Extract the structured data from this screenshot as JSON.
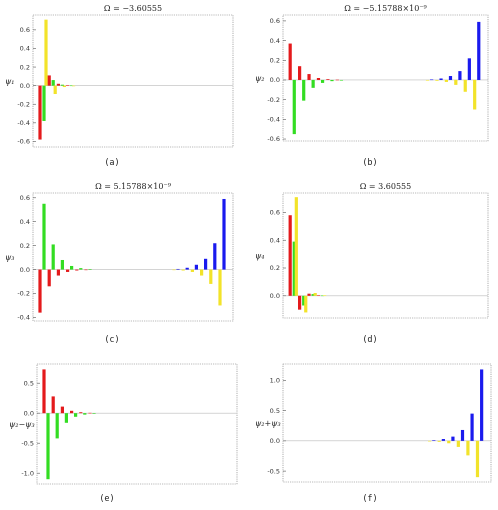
{
  "colors": {
    "red": "#e41a1c",
    "green": "#33dd22",
    "yellow": "#f2e32a",
    "blue": "#1a1aee",
    "frame": "#777777",
    "axis": "#bbbbbb"
  },
  "chart_data": [
    {
      "type": "bar",
      "title": "Ω = −3.60555",
      "ylabel": "ψ₁",
      "caption": "(a)",
      "ylim": [
        -0.66,
        0.76
      ],
      "yticks": [
        -0.6,
        -0.4,
        -0.2,
        0.0,
        0.2,
        0.4,
        0.6
      ],
      "tick_labels": [
        "-0.6",
        "-0.4",
        "-0.2",
        "0.0",
        "0.2",
        "0.4",
        "0.6"
      ],
      "series": [
        {
          "color": "red",
          "values": [
            -0.58,
            0.11,
            0.02,
            0.003
          ]
        },
        {
          "color": "green",
          "values": [
            -0.38,
            0.06,
            0.01,
            0.002
          ]
        },
        {
          "color": "yellow",
          "values": [
            0.71,
            -0.09,
            -0.015,
            -0.002
          ]
        },
        {
          "color": "blue",
          "values": []
        }
      ]
    },
    {
      "type": "bar",
      "title": "Ω = −5.15788×10⁻⁹",
      "ylabel": "ψ₂",
      "caption": "(b)",
      "ylim": [
        -0.62,
        0.66
      ],
      "yticks": [
        -0.6,
        -0.4,
        -0.2,
        0.0,
        0.2,
        0.4,
        0.6
      ],
      "tick_labels": [
        "-0.6",
        "-0.4",
        "-0.2",
        "0.0",
        "0.2",
        "0.4",
        "0.6"
      ],
      "series": [
        {
          "color": "red",
          "values": [
            0.37,
            0.14,
            0.06,
            0.02,
            0.008,
            0.003
          ]
        },
        {
          "color": "green",
          "values": [
            -0.55,
            -0.21,
            -0.08,
            -0.03,
            -0.012,
            -0.004
          ]
        },
        {
          "color": "yellow",
          "values": [
            -0.3,
            -0.12,
            -0.05,
            -0.02,
            -0.008,
            -0.003
          ]
        },
        {
          "color": "blue",
          "values": [
            0.59,
            0.22,
            0.09,
            0.04,
            0.015,
            0.005
          ]
        }
      ]
    },
    {
      "type": "bar",
      "title": "Ω = 5.15788×10⁻⁹",
      "ylabel": "ψ₃",
      "caption": "(c)",
      "ylim": [
        -0.43,
        0.64
      ],
      "yticks": [
        -0.4,
        -0.2,
        0.0,
        0.2,
        0.4,
        0.6
      ],
      "tick_labels": [
        "-0.4",
        "-0.2",
        "0.0",
        "0.2",
        "0.4",
        "0.6"
      ],
      "series": [
        {
          "color": "red",
          "values": [
            -0.36,
            -0.14,
            -0.05,
            -0.02,
            -0.008,
            -0.003
          ]
        },
        {
          "color": "green",
          "values": [
            0.55,
            0.21,
            0.08,
            0.03,
            0.012,
            0.004
          ]
        },
        {
          "color": "yellow",
          "values": [
            -0.3,
            -0.12,
            -0.05,
            -0.02,
            -0.008,
            -0.003
          ]
        },
        {
          "color": "blue",
          "values": [
            0.59,
            0.22,
            0.09,
            0.04,
            0.015,
            0.005
          ]
        }
      ]
    },
    {
      "type": "bar",
      "title": "Ω = 3.60555",
      "ylabel": "ψ₄",
      "caption": "(d)",
      "ylim": [
        -0.16,
        0.74
      ],
      "yticks": [
        0.0,
        0.2,
        0.4,
        0.6
      ],
      "tick_labels": [
        "0.0",
        "0.2",
        "0.4",
        "0.6"
      ],
      "series": [
        {
          "color": "red",
          "values": [
            0.58,
            -0.1,
            0.015,
            0.003
          ]
        },
        {
          "color": "green",
          "values": [
            0.39,
            -0.07,
            0.012,
            0.002
          ]
        },
        {
          "color": "yellow",
          "values": [
            0.71,
            -0.12,
            0.02,
            0.003
          ]
        },
        {
          "color": "blue",
          "values": []
        }
      ]
    },
    {
      "type": "bar",
      "title": "",
      "ylabel": "ψ₂−ψ₃",
      "caption": "(e)",
      "ylim": [
        -1.18,
        0.82
      ],
      "yticks": [
        -1.0,
        -0.5,
        0.0,
        0.5
      ],
      "tick_labels": [
        "-1.0",
        "-0.5",
        "0.0",
        "0.5"
      ],
      "series": [
        {
          "color": "red",
          "values": [
            0.73,
            0.28,
            0.11,
            0.04,
            0.016,
            0.006
          ]
        },
        {
          "color": "green",
          "values": [
            -1.1,
            -0.42,
            -0.16,
            -0.06,
            -0.024,
            -0.008
          ]
        },
        {
          "color": "yellow",
          "values": []
        },
        {
          "color": "blue",
          "values": []
        }
      ]
    },
    {
      "type": "bar",
      "title": "",
      "ylabel": "ψ₂+ψ₃",
      "caption": "(f)",
      "ylim": [
        -0.68,
        1.27
      ],
      "yticks": [
        -0.5,
        0.0,
        0.5,
        1.0
      ],
      "tick_labels": [
        "-0.5",
        "0.0",
        "0.5",
        "1.0"
      ],
      "series": [
        {
          "color": "red",
          "values": []
        },
        {
          "color": "green",
          "values": []
        },
        {
          "color": "yellow",
          "values": [
            -0.6,
            -0.24,
            -0.1,
            -0.04,
            -0.016,
            -0.006
          ]
        },
        {
          "color": "blue",
          "values": [
            1.18,
            0.45,
            0.18,
            0.07,
            0.03,
            0.01
          ]
        }
      ]
    }
  ]
}
